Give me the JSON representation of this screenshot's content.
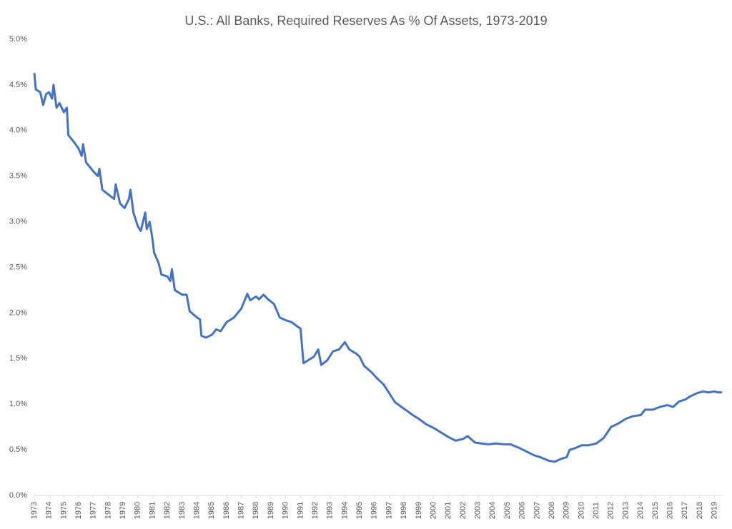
{
  "chart_data": {
    "type": "line",
    "title": "U.S.: All Banks, Required Reserves As % Of Assets, 1973-2019",
    "x": [
      1973.0,
      1973.1,
      1973.4,
      1973.6,
      1973.8,
      1974.0,
      1974.2,
      1974.3,
      1974.5,
      1974.7,
      1975.0,
      1975.2,
      1975.3,
      1975.7,
      1976.0,
      1976.2,
      1976.3,
      1976.5,
      1977.0,
      1977.3,
      1977.4,
      1977.6,
      1978.0,
      1978.4,
      1978.5,
      1978.8,
      1979.1,
      1979.4,
      1979.5,
      1979.7,
      1980.0,
      1980.2,
      1980.5,
      1980.6,
      1980.8,
      1981.0,
      1981.1,
      1981.4,
      1981.6,
      1982.0,
      1982.2,
      1982.3,
      1982.5,
      1983.0,
      1983.3,
      1983.5,
      1984.0,
      1984.2,
      1984.3,
      1984.6,
      1985.0,
      1985.3,
      1985.6,
      1986.0,
      1986.3,
      1986.5,
      1987.0,
      1987.4,
      1987.6,
      1988.0,
      1988.2,
      1988.5,
      1988.8,
      1989.2,
      1989.6,
      1990.0,
      1990.4,
      1990.8,
      1991.0,
      1991.2,
      1991.5,
      1991.9,
      1992.2,
      1992.4,
      1992.8,
      1993.2,
      1993.6,
      1994.0,
      1994.3,
      1994.8,
      1995.0,
      1995.3,
      1995.8,
      1996.2,
      1996.6,
      1997.0,
      1997.4,
      1998.0,
      1998.6,
      1999.0,
      1999.5,
      2000.0,
      2000.5,
      2001.0,
      2001.5,
      2002.0,
      2002.3,
      2002.8,
      2003.2,
      2003.7,
      2004.2,
      2004.8,
      2005.2,
      2005.8,
      2006.3,
      2006.8,
      2007.2,
      2007.8,
      2008.2,
      2008.6,
      2009.0,
      2009.2,
      2009.6,
      2010.0,
      2010.5,
      2011.0,
      2011.5,
      2012.0,
      2012.5,
      2013.0,
      2013.5,
      2014.0,
      2014.3,
      2014.8,
      2015.3,
      2015.8,
      2016.2,
      2016.6,
      2017.0,
      2017.4,
      2017.8,
      2018.2,
      2018.6,
      2019.0,
      2019.2,
      2019.5
    ],
    "values": [
      4.63,
      4.45,
      4.42,
      4.28,
      4.4,
      4.42,
      4.35,
      4.5,
      4.25,
      4.3,
      4.2,
      4.25,
      3.95,
      3.87,
      3.8,
      3.72,
      3.85,
      3.65,
      3.55,
      3.5,
      3.58,
      3.35,
      3.3,
      3.25,
      3.41,
      3.2,
      3.15,
      3.25,
      3.35,
      3.1,
      2.95,
      2.9,
      3.1,
      2.92,
      3.0,
      2.8,
      2.66,
      2.55,
      2.42,
      2.4,
      2.35,
      2.48,
      2.25,
      2.2,
      2.2,
      2.02,
      1.95,
      1.93,
      1.75,
      1.73,
      1.76,
      1.82,
      1.8,
      1.9,
      1.93,
      1.95,
      2.05,
      2.21,
      2.14,
      2.18,
      2.15,
      2.2,
      2.15,
      2.1,
      1.95,
      1.92,
      1.9,
      1.85,
      1.83,
      1.45,
      1.48,
      1.52,
      1.6,
      1.43,
      1.48,
      1.58,
      1.6,
      1.68,
      1.6,
      1.55,
      1.52,
      1.42,
      1.35,
      1.28,
      1.22,
      1.12,
      1.02,
      0.95,
      0.88,
      0.84,
      0.78,
      0.74,
      0.69,
      0.64,
      0.6,
      0.62,
      0.65,
      0.58,
      0.57,
      0.56,
      0.57,
      0.56,
      0.56,
      0.52,
      0.48,
      0.44,
      0.42,
      0.38,
      0.37,
      0.4,
      0.42,
      0.5,
      0.52,
      0.55,
      0.55,
      0.57,
      0.63,
      0.75,
      0.79,
      0.84,
      0.87,
      0.88,
      0.94,
      0.94,
      0.97,
      0.99,
      0.97,
      1.03,
      1.05,
      1.09,
      1.12,
      1.14,
      1.13,
      1.14,
      1.13,
      1.13
    ],
    "color": "#4472c4",
    "xlim": [
      1973,
      2019.5
    ],
    "xticks": [
      1973,
      1974,
      1975,
      1976,
      1977,
      1978,
      1979,
      1980,
      1981,
      1982,
      1983,
      1984,
      1985,
      1986,
      1987,
      1988,
      1989,
      1990,
      1991,
      1992,
      1993,
      1994,
      1995,
      1996,
      1997,
      1998,
      1999,
      2000,
      2001,
      2002,
      2003,
      2004,
      2005,
      2006,
      2007,
      2008,
      2009,
      2010,
      2011,
      2012,
      2013,
      2014,
      2015,
      2016,
      2017,
      2018,
      2019
    ],
    "ylim": [
      0,
      5
    ],
    "yticks": [
      {
        "value": 0,
        "label": "0.0%"
      },
      {
        "value": 0.5,
        "label": "0.5%"
      },
      {
        "value": 1,
        "label": "1.0%"
      },
      {
        "value": 1.5,
        "label": "1.5%"
      },
      {
        "value": 2,
        "label": "2.0%"
      },
      {
        "value": 2.5,
        "label": "2.5%"
      },
      {
        "value": 3,
        "label": "3.0%"
      },
      {
        "value": 3.5,
        "label": "3.5%"
      },
      {
        "value": 4,
        "label": "4.0%"
      },
      {
        "value": 4.5,
        "label": "4.5%"
      },
      {
        "value": 5,
        "label": "5.0%"
      }
    ]
  }
}
